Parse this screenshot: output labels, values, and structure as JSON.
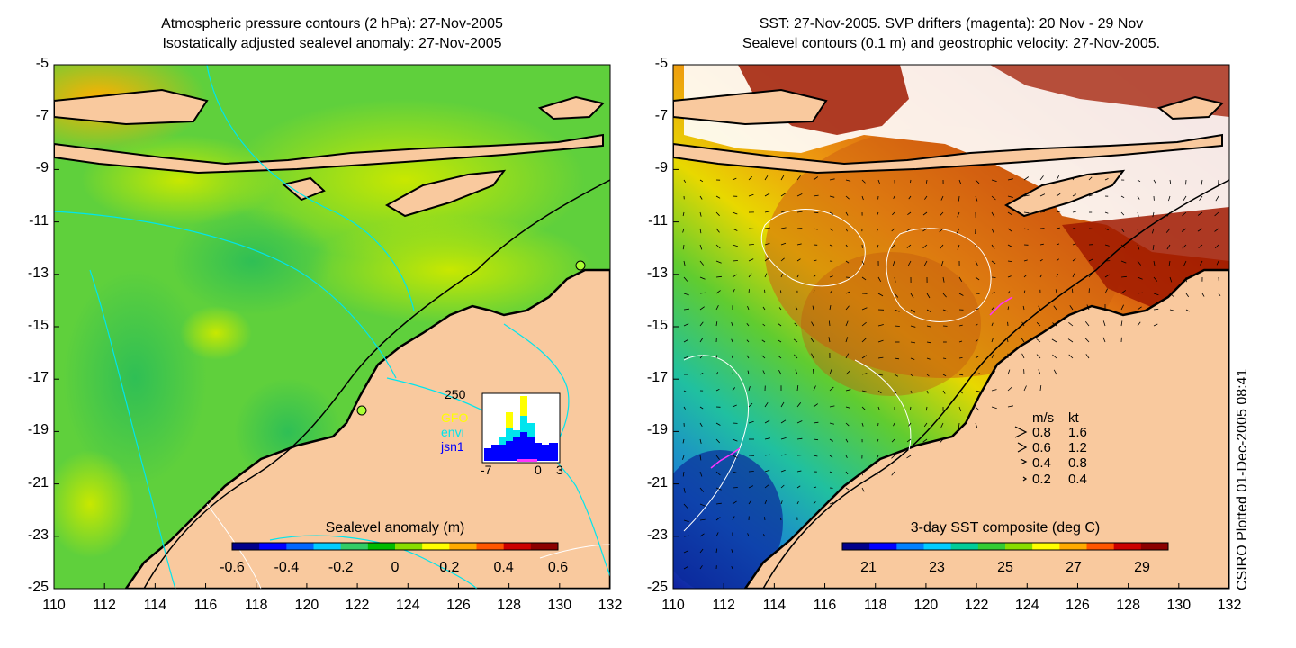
{
  "left_panel": {
    "title_line1": "Atmospheric pressure contours (2 hPa): 27-Nov-2005",
    "title_line2": "Isostatically adjusted sealevel anomaly: 27-Nov-2005",
    "colorbar": {
      "title": "Sealevel anomaly (m)",
      "ticks": [
        "-0.6",
        "-0.4",
        "-0.2",
        "0",
        "0.2",
        "0.4",
        "0.6"
      ],
      "colors": [
        "#00008b",
        "#0000ff",
        "#0066ff",
        "#00ccff",
        "#33cc66",
        "#00bb00",
        "#88dd00",
        "#ffff00",
        "#ffaa00",
        "#ff5500",
        "#cc0000",
        "#8b0000"
      ]
    },
    "inset": {
      "ymax_label": "250",
      "legend": [
        "GFO",
        "envi",
        "jsn1"
      ],
      "legend_colors": [
        "#ffff00",
        "#00e5ee",
        "#0000ff"
      ],
      "xticks": [
        "-7",
        "0",
        "3"
      ]
    }
  },
  "right_panel": {
    "title_line1": "SST: 27-Nov-2005. SVP drifters (magenta): 20 Nov - 29 Nov",
    "title_line2": "Sealevel contours (0.1 m) and geostrophic velocity: 27-Nov-2005.",
    "colorbar": {
      "title": "3-day SST composite (deg C)",
      "ticks": [
        "21",
        "23",
        "25",
        "27",
        "29"
      ],
      "colors": [
        "#00008b",
        "#0000ff",
        "#0080ff",
        "#00ccff",
        "#00cc99",
        "#33cc33",
        "#88dd00",
        "#ffff00",
        "#ffaa00",
        "#ff5500",
        "#cc0000",
        "#8b0000"
      ]
    },
    "velocity_legend": {
      "header_ms": "m/s",
      "header_kt": "kt",
      "rows": [
        {
          "ms": "0.8",
          "kt": "1.6"
        },
        {
          "ms": "0.6",
          "kt": "1.2"
        },
        {
          "ms": "0.4",
          "kt": "0.8"
        },
        {
          "ms": "0.2",
          "kt": "0.4"
        }
      ]
    }
  },
  "axes": {
    "lat_ticks": [
      "-5",
      "-7",
      "-9",
      "-11",
      "-13",
      "-15",
      "-17",
      "-19",
      "-21",
      "-23",
      "-25"
    ],
    "lon_ticks": [
      "110",
      "112",
      "114",
      "116",
      "118",
      "120",
      "122",
      "124",
      "126",
      "128",
      "130",
      "132"
    ]
  },
  "credit": "CSIRO Plotted 01-Dec-2005 08:41",
  "colors": {
    "land": "#f9c99e",
    "ocean_left": "#5fd03c",
    "ocean_right": "#d2691e",
    "coast": "#000000",
    "contour": "#00e5ee"
  }
}
